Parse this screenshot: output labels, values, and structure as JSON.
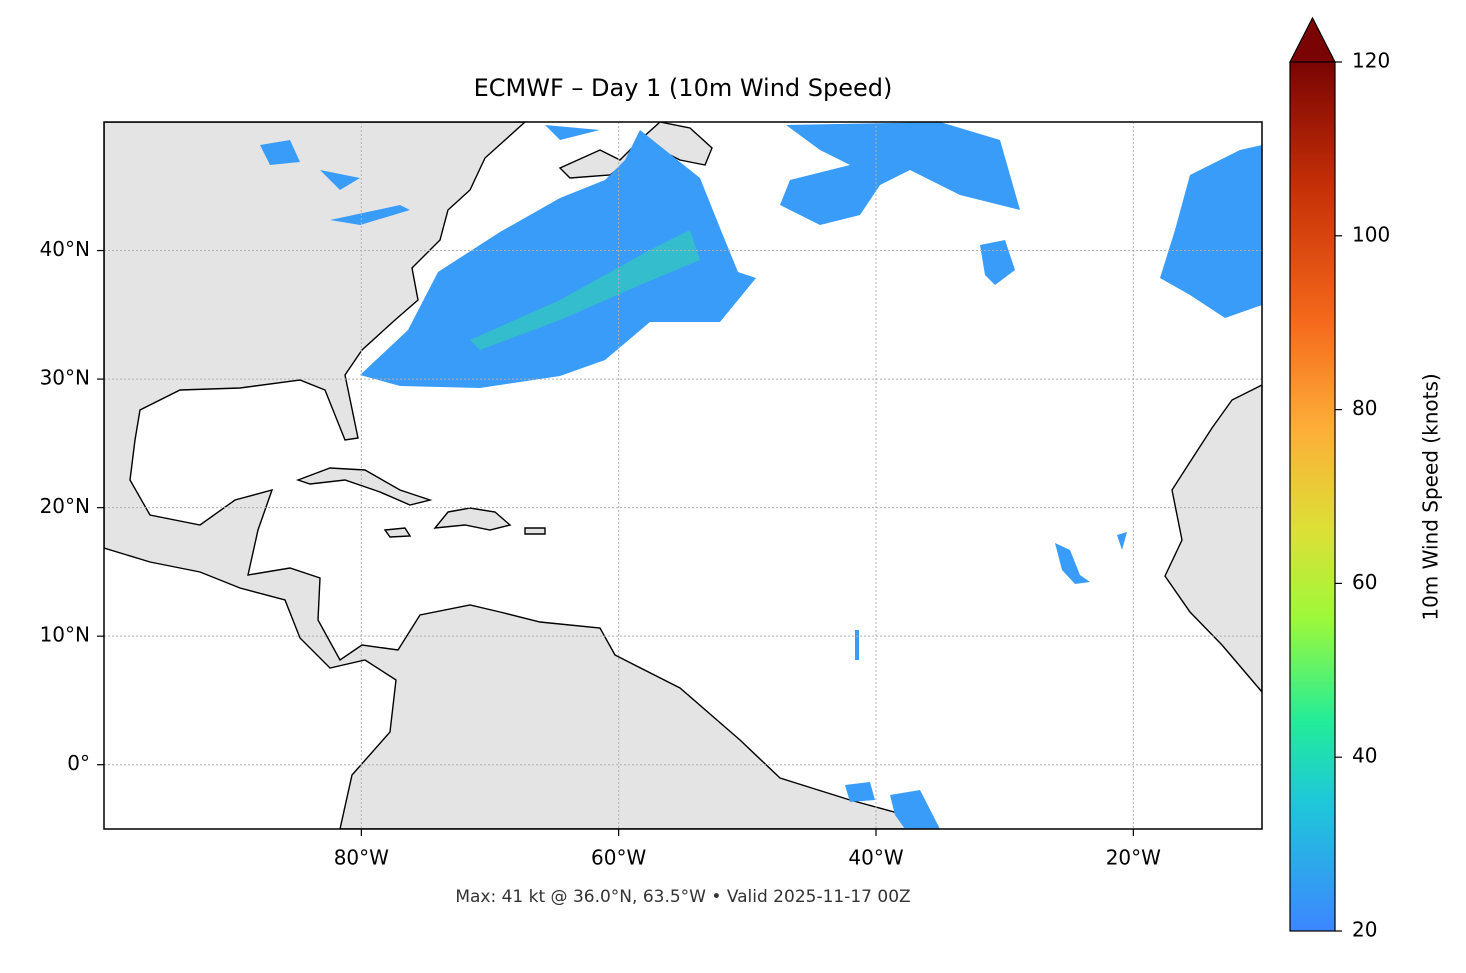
{
  "chart_data": {
    "type": "map",
    "title": "ECMWF – Day 1 (10m Wind Speed)",
    "caption": "Max: 41 kt @ 36.0°N, 63.5°W • Valid 2025-11-17 00Z",
    "xlim": [
      -100,
      -10
    ],
    "ylim": [
      -5,
      50
    ],
    "xticks": [
      {
        "value": -80,
        "label": "80°W"
      },
      {
        "value": -60,
        "label": "60°W"
      },
      {
        "value": -40,
        "label": "40°W"
      },
      {
        "value": -20,
        "label": "20°W"
      }
    ],
    "yticks": [
      {
        "value": 0,
        "label": "0°"
      },
      {
        "value": 10,
        "label": "10°N"
      },
      {
        "value": 20,
        "label": "20°N"
      },
      {
        "value": 30,
        "label": "30°N"
      },
      {
        "value": 40,
        "label": "40°N"
      }
    ],
    "grid": true,
    "colorbar": {
      "label": "10m Wind Speed (knots)",
      "lim": [
        20,
        120
      ],
      "ticks": [
        20,
        40,
        60,
        80,
        100,
        120
      ]
    }
  }
}
